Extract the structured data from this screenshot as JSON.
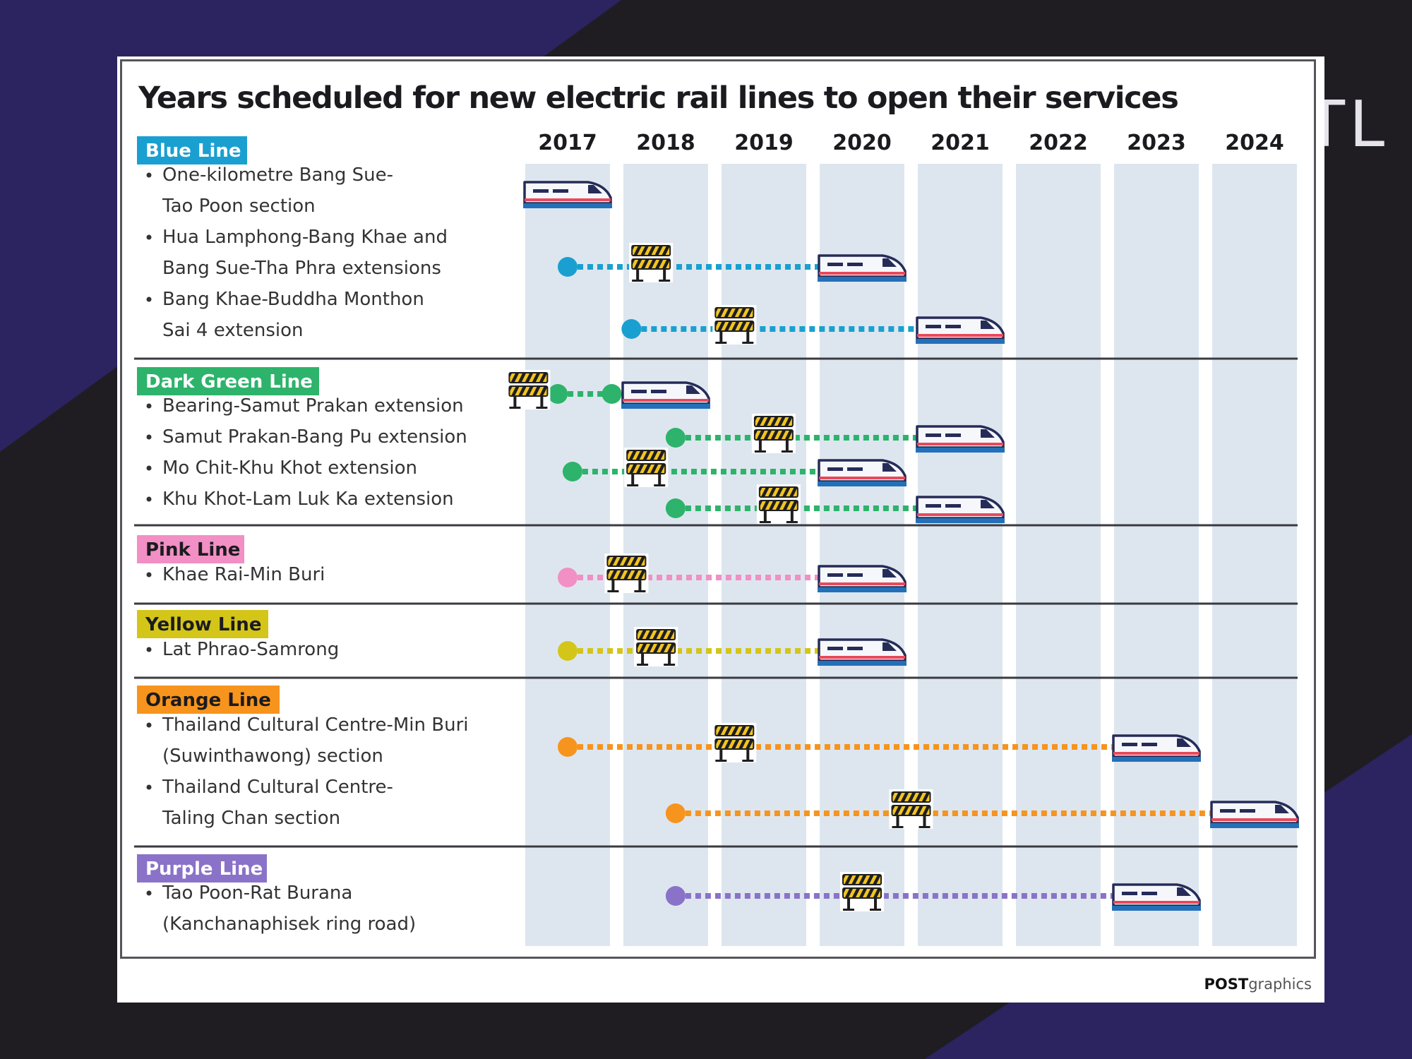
{
  "background_word": "TL",
  "credit": {
    "bold": "POST",
    "light": "graphics"
  },
  "chart_data": {
    "type": "timeline",
    "title": "Years scheduled for new electric rail lines to open their services",
    "years": [
      "2017",
      "2018",
      "2019",
      "2020",
      "2021",
      "2022",
      "2023",
      "2024"
    ],
    "groups": [
      {
        "name": "Blue Line",
        "color": "#1aa0d0",
        "items": [
          {
            "label": [
              "One-kilometre Bang Sue-",
              "Tao Poon section"
            ],
            "start": 2016.65,
            "works": null,
            "end": 2016.85,
            "open": 2017
          },
          {
            "label": [
              "Hua Lamphong-Bang Khae and",
              "Bang Sue-Tha Phra extensions"
            ],
            "start": 2017.0,
            "works": 2017.85,
            "end": 2019.75,
            "open": 2020
          },
          {
            "label": [
              "Bang Khae-Buddha Monthon",
              "Sai 4 extension"
            ],
            "start": 2017.65,
            "works": 2018.7,
            "end": 2020.7,
            "open": 2021
          }
        ]
      },
      {
        "name": "Dark Green Line",
        "color": "#2db36b",
        "items": [
          {
            "label": [
              "Bearing-Samut Prakan extension"
            ],
            "start": 2016.9,
            "works": 2016.6,
            "end": 2017.45,
            "open": 2018
          },
          {
            "label": [
              "Samut Prakan-Bang Pu extension"
            ],
            "start": 2018.1,
            "works": 2019.1,
            "end": 2020.7,
            "open": 2021
          },
          {
            "label": [
              "Mo Chit-Khu Khot extension"
            ],
            "start": 2017.05,
            "works": 2017.8,
            "end": 2019.75,
            "open": 2020
          },
          {
            "label": [
              "Khu Khot-Lam Luk Ka extension"
            ],
            "start": 2018.1,
            "works": 2019.15,
            "end": 2020.7,
            "open": 2021
          }
        ]
      },
      {
        "name": "Pink Line",
        "color": "#f28fc4",
        "items": [
          {
            "label": [
              "Khae Rai-Min Buri"
            ],
            "start": 2017.0,
            "works": 2017.6,
            "end": 2019.7,
            "open": 2020
          }
        ]
      },
      {
        "name": "Yellow Line",
        "color": "#d4c519",
        "items": [
          {
            "label": [
              "Lat Phrao-Samrong"
            ],
            "start": 2017.0,
            "works": 2017.9,
            "end": 2019.65,
            "open": 2020
          }
        ]
      },
      {
        "name": "Orange Line",
        "color": "#f7941d",
        "items": [
          {
            "label": [
              "Thailand Cultural Centre-Min Buri",
              "(Suwinthawong) section"
            ],
            "start": 2017.0,
            "works": 2018.7,
            "end": 2022.7,
            "open": 2023
          },
          {
            "label": [
              "Thailand Cultural Centre-",
              "Taling Chan section"
            ],
            "start": 2018.1,
            "works": 2020.5,
            "end": 2023.75,
            "open": 2024
          }
        ]
      },
      {
        "name": "Purple Line",
        "color": "#8a72c9",
        "items": [
          {
            "label": [
              "Tao Poon-Rat Burana",
              "(Kanchanaphisek ring road)"
            ],
            "start": 2018.1,
            "works": 2020.0,
            "end": 2022.65,
            "open": 2023
          }
        ]
      }
    ]
  }
}
